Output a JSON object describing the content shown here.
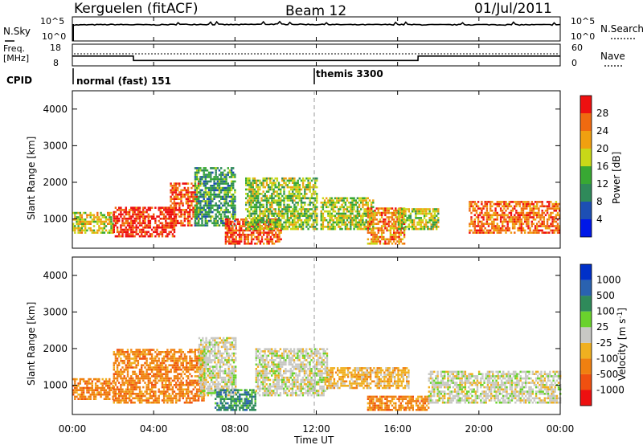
{
  "header": {
    "title_left": "Kerguelen (fitACF)",
    "title_center": "Beam 12",
    "title_right": "01/Jul/2011"
  },
  "noise_panel": {
    "left_label": "N.Sky",
    "left_ticks": [
      "10^5",
      "10^0"
    ],
    "right_label": "N.Search",
    "right_ticks": [
      "10^5",
      "10^0"
    ]
  },
  "freq_panel": {
    "left_label_1": "Freq.",
    "left_label_2": "[MHz]",
    "left_ticks": [
      "18",
      "8"
    ],
    "right_label": "Nave",
    "right_ticks": [
      "60",
      "0"
    ]
  },
  "cpid_panel": {
    "label": "CPID",
    "modes": [
      {
        "name": "normal (fast) 151",
        "start_hour": 0
      },
      {
        "name": "themis 3300",
        "start_hour": 12
      }
    ]
  },
  "colors": {
    "power": [
      "#0018e8",
      "#1d4fb4",
      "#2f8a5a",
      "#38a833",
      "#c8d818",
      "#f0a010",
      "#f06a10",
      "#ee1010"
    ],
    "velocity": [
      "#ee1010",
      "#f05010",
      "#f08010",
      "#f0b020",
      "#c8c8c4",
      "#6ad22c",
      "#2f8a5a",
      "#2a62b0",
      "#0030c8"
    ]
  },
  "chart_data": [
    {
      "type": "line",
      "title": "Kerguelen (fitACF)",
      "panel": "noise",
      "series": [
        {
          "name": "N.Sky",
          "x": [
            0,
            2,
            4,
            6,
            8,
            10,
            12,
            14,
            16,
            18,
            20,
            22,
            24
          ],
          "values": [
            2000,
            2500,
            2200,
            2800,
            2400,
            3000,
            2600,
            2300,
            2500,
            2200,
            2400,
            2300,
            2200
          ]
        }
      ]
    },
    {
      "type": "line",
      "panel": "frequency",
      "ylim": [
        8,
        18
      ],
      "series": [
        {
          "name": "Freq.",
          "x": [
            0,
            3.0,
            3.01,
            17.0,
            17.01,
            24
          ],
          "values": [
            12.5,
            12.5,
            10.5,
            10.5,
            12.5,
            12.5
          ]
        }
      ]
    },
    {
      "type": "heatmap",
      "title": "Beam 12",
      "xlabel": "",
      "ylabel": "Slant Range [km]",
      "colorbar_label": "Power [dB]",
      "colorbar_ticks": [
        4,
        8,
        12,
        16,
        20,
        24,
        28
      ],
      "xlim": [
        0,
        24
      ],
      "ylim": [
        200,
        4500
      ],
      "x_ticks": [
        0,
        4,
        8,
        12,
        16,
        20,
        24
      ],
      "y_ticks": [
        1000,
        2000,
        3000,
        4000
      ],
      "features": [
        {
          "x_start": 0.0,
          "x_end": 2.0,
          "range_min": 600,
          "range_max": 1200,
          "level": 0.6
        },
        {
          "x_start": 2.0,
          "x_end": 5.0,
          "range_min": 500,
          "range_max": 1300,
          "level": 0.97
        },
        {
          "x_start": 4.8,
          "x_end": 6.2,
          "range_min": 800,
          "range_max": 2000,
          "level": 0.9
        },
        {
          "x_start": 6.0,
          "x_end": 8.0,
          "range_min": 800,
          "range_max": 2400,
          "level": 0.35
        },
        {
          "x_start": 7.5,
          "x_end": 10.3,
          "range_min": 300,
          "range_max": 1000,
          "level": 0.93
        },
        {
          "x_start": 8.5,
          "x_end": 12.0,
          "range_min": 700,
          "range_max": 2100,
          "level": 0.5
        },
        {
          "x_start": 12.2,
          "x_end": 14.8,
          "range_min": 700,
          "range_max": 1600,
          "level": 0.55
        },
        {
          "x_start": 14.5,
          "x_end": 16.3,
          "range_min": 300,
          "range_max": 1300,
          "level": 0.8
        },
        {
          "x_start": 16.0,
          "x_end": 18.0,
          "range_min": 700,
          "range_max": 1300,
          "level": 0.55
        },
        {
          "x_start": 19.5,
          "x_end": 24.0,
          "range_min": 600,
          "range_max": 1500,
          "level": 0.85
        }
      ]
    },
    {
      "type": "heatmap",
      "xlabel": "Time UT",
      "ylabel": "Slant Range [km]",
      "colorbar_label": "Velocity [m s^-1]",
      "colorbar_ticks": [
        1000,
        500,
        100,
        25,
        -25,
        -100,
        -500,
        -1000
      ],
      "xlim": [
        0,
        24
      ],
      "ylim": [
        200,
        4500
      ],
      "x_ticks": [
        "00:00",
        "04:00",
        "08:00",
        "12:00",
        "16:00",
        "20:00",
        "00:00"
      ],
      "y_ticks": [
        1000,
        2000,
        3000,
        4000
      ],
      "features": [
        {
          "x_start": 0.0,
          "x_end": 2.0,
          "range_min": 600,
          "range_max": 1200,
          "velocity": -150
        },
        {
          "x_start": 2.0,
          "x_end": 6.5,
          "range_min": 500,
          "range_max": 2000,
          "velocity": -200
        },
        {
          "x_start": 6.2,
          "x_end": 8.0,
          "range_min": 700,
          "range_max": 2300,
          "velocity": 0
        },
        {
          "x_start": 7.0,
          "x_end": 9.0,
          "range_min": 300,
          "range_max": 900,
          "velocity": 150
        },
        {
          "x_start": 9.0,
          "x_end": 12.5,
          "range_min": 700,
          "range_max": 2000,
          "velocity": 0
        },
        {
          "x_start": 12.5,
          "x_end": 16.5,
          "range_min": 900,
          "range_max": 1500,
          "velocity": -40
        },
        {
          "x_start": 14.5,
          "x_end": 17.5,
          "range_min": 300,
          "range_max": 700,
          "velocity": -120
        },
        {
          "x_start": 17.5,
          "x_end": 24.0,
          "range_min": 500,
          "range_max": 1400,
          "velocity": 0
        }
      ]
    }
  ]
}
